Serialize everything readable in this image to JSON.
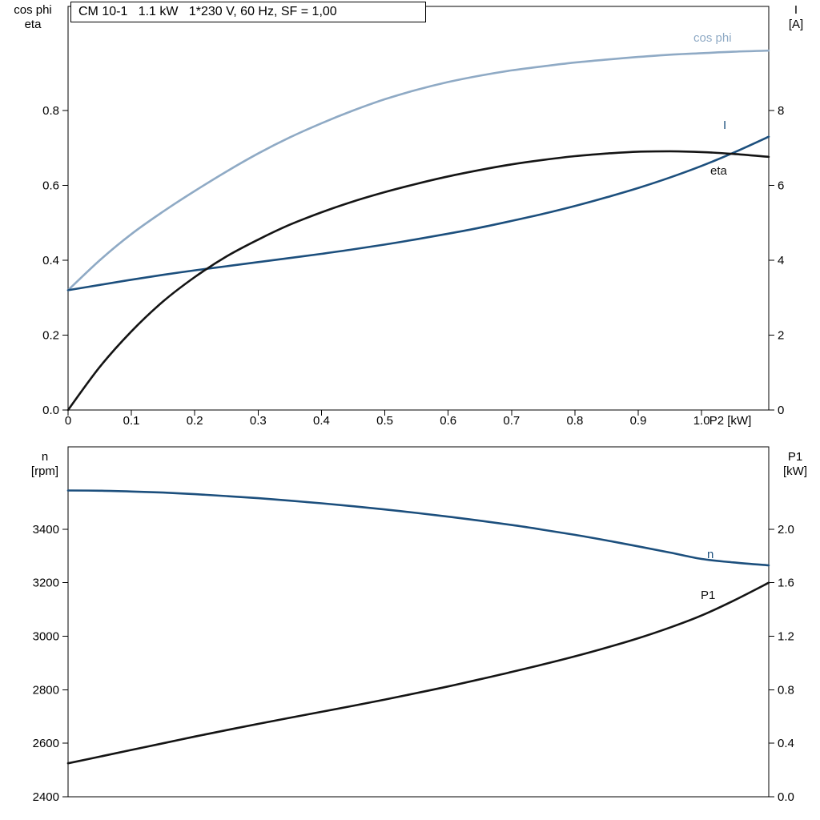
{
  "colors": {
    "light_blue": "#8FAAC5",
    "dark_blue": "#1C4F7D",
    "curve_black": "#141414",
    "axis": "#000000"
  },
  "chart_data": [
    {
      "type": "line",
      "title": "CM 10-1   1.1 kW   1*230 V, 60 Hz, SF = 1,00",
      "xlabel": "P2 [kW]",
      "grid": false,
      "legend_position": "curve-end-labels",
      "x_range": [
        0,
        1.106
      ],
      "x_ticks": [
        0,
        0.1,
        0.2,
        0.3,
        0.4,
        0.5,
        0.6,
        0.7,
        0.8,
        0.9,
        1.0
      ],
      "x_tick_labels": [
        "0",
        "0.1",
        "0.2",
        "0.3",
        "0.4",
        "0.5",
        "0.6",
        "0.7",
        "0.8",
        "0.9",
        "1.0"
      ],
      "left_axis": {
        "label": [
          "cos phi",
          "eta"
        ],
        "range": [
          0,
          1.078
        ],
        "ticks": [
          0,
          0.2,
          0.4,
          0.6,
          0.8
        ],
        "tick_labels": [
          "0.0",
          "0.2",
          "0.4",
          "0.6",
          "0.8"
        ]
      },
      "right_axis": {
        "label": [
          "I",
          "[A]"
        ],
        "range": [
          0,
          10.78
        ],
        "ticks": [
          0,
          2,
          4,
          6,
          8
        ],
        "tick_labels": [
          "0",
          "2",
          "4",
          "6",
          "8"
        ]
      },
      "x": [
        0,
        0.05,
        0.1,
        0.15,
        0.2,
        0.25,
        0.3,
        0.35,
        0.4,
        0.45,
        0.5,
        0.55,
        0.6,
        0.65,
        0.7,
        0.75,
        0.8,
        0.85,
        0.9,
        0.95,
        1.0,
        1.05,
        1.106
      ],
      "series": [
        {
          "name": "cos phi",
          "axis": "left",
          "color": "light_blue",
          "values": [
            0.32,
            0.4,
            0.47,
            0.53,
            0.585,
            0.637,
            0.685,
            0.728,
            0.766,
            0.8,
            0.83,
            0.855,
            0.876,
            0.893,
            0.907,
            0.918,
            0.928,
            0.936,
            0.943,
            0.949,
            0.953,
            0.957,
            0.96
          ]
        },
        {
          "name": "I",
          "axis": "right",
          "color": "dark_blue",
          "values": [
            3.2,
            3.34,
            3.48,
            3.61,
            3.73,
            3.84,
            3.95,
            4.06,
            4.17,
            4.29,
            4.42,
            4.56,
            4.71,
            4.87,
            5.05,
            5.24,
            5.45,
            5.68,
            5.93,
            6.21,
            6.52,
            6.87,
            7.3
          ]
        },
        {
          "name": "eta",
          "axis": "left",
          "color": "curve_black",
          "values": [
            0.0,
            0.115,
            0.21,
            0.29,
            0.355,
            0.41,
            0.455,
            0.495,
            0.528,
            0.557,
            0.582,
            0.604,
            0.624,
            0.641,
            0.656,
            0.668,
            0.678,
            0.685,
            0.69,
            0.691,
            0.689,
            0.684,
            0.676
          ]
        }
      ]
    },
    {
      "type": "line",
      "title": "",
      "xlabel": "",
      "grid": false,
      "legend_position": "curve-end-labels",
      "x_range": [
        0,
        1.106
      ],
      "x_ticks": [],
      "x_tick_labels": [],
      "left_axis": {
        "label": [
          "n",
          "[rpm]"
        ],
        "range": [
          2400,
          3708
        ],
        "ticks": [
          2400,
          2600,
          2800,
          3000,
          3200,
          3400
        ],
        "tick_labels": [
          "2400",
          "2600",
          "2800",
          "3000",
          "3200",
          "3400"
        ]
      },
      "right_axis": {
        "label": [
          "P1",
          "[kW]"
        ],
        "range": [
          0,
          2.616
        ],
        "ticks": [
          0,
          0.4,
          0.8,
          1.2,
          1.6,
          2.0
        ],
        "tick_labels": [
          "0.0",
          "0.4",
          "0.8",
          "1.2",
          "1.6",
          "2.0"
        ]
      },
      "x": [
        0,
        0.05,
        0.1,
        0.15,
        0.2,
        0.25,
        0.3,
        0.35,
        0.4,
        0.45,
        0.5,
        0.55,
        0.6,
        0.65,
        0.7,
        0.75,
        0.8,
        0.85,
        0.9,
        0.95,
        1.0,
        1.05,
        1.106
      ],
      "series": [
        {
          "name": "n",
          "axis": "left",
          "color": "dark_blue",
          "values": [
            3545,
            3544,
            3541,
            3537,
            3531,
            3524,
            3516,
            3507,
            3497,
            3486,
            3474,
            3461,
            3447,
            3432,
            3416,
            3398,
            3379,
            3358,
            3336,
            3313,
            3289,
            3276,
            3265
          ]
        },
        {
          "name": "P1",
          "axis": "right",
          "color": "curve_black",
          "values": [
            0.25,
            0.3,
            0.35,
            0.4,
            0.45,
            0.498,
            0.545,
            0.59,
            0.635,
            0.68,
            0.727,
            0.775,
            0.825,
            0.878,
            0.933,
            0.99,
            1.05,
            1.115,
            1.185,
            1.265,
            1.355,
            1.465,
            1.6
          ]
        }
      ]
    }
  ]
}
